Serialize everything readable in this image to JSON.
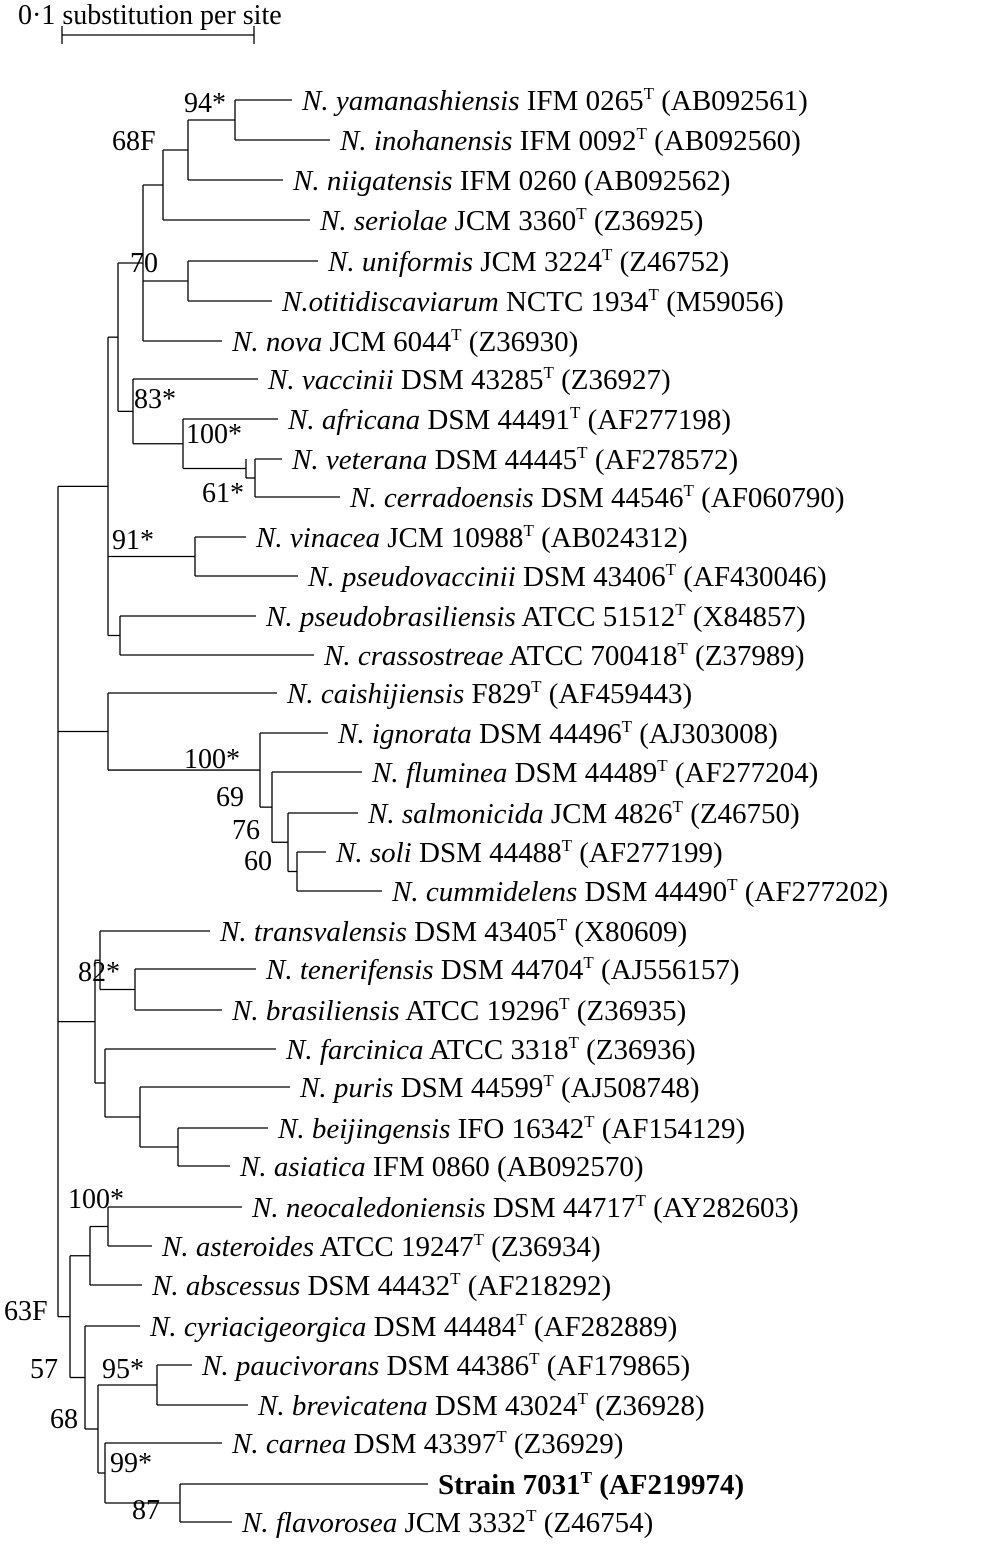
{
  "scale_bar": {
    "label": "0·1 substitution per site"
  },
  "taxa": [
    {
      "id": "yamanashiensis",
      "species": "N. yamanashiensis",
      "strain": " IFM 0265",
      "type_strain": true,
      "accession": " (AB092561)"
    },
    {
      "id": "inohanensis",
      "species": "N. inohanensis",
      "strain": " IFM 0092",
      "type_strain": true,
      "accession": " (AB092560)"
    },
    {
      "id": "niigatensis",
      "species": "N. niigatensis",
      "strain": " IFM 0260 (AB092562)",
      "type_strain": false,
      "accession": ""
    },
    {
      "id": "seriolae",
      "species": "N. seriolae",
      "strain": " JCM 3360",
      "type_strain": true,
      "accession": " (Z36925)"
    },
    {
      "id": "uniformis",
      "species": "N. uniformis",
      "strain": " JCM 3224",
      "type_strain": true,
      "accession": " (Z46752)"
    },
    {
      "id": "otitidiscaviarum",
      "species": "N.otitidiscaviarum",
      "strain": " NCTC 1934",
      "type_strain": true,
      "accession": " (M59056)"
    },
    {
      "id": "nova",
      "species": "N. nova",
      "strain": " JCM 6044",
      "type_strain": true,
      "accession": " (Z36930)"
    },
    {
      "id": "vaccinii",
      "species": "N. vaccinii",
      "strain": " DSM 43285",
      "type_strain": true,
      "accession": " (Z36927)"
    },
    {
      "id": "africana",
      "species": "N. africana",
      "strain": " DSM 44491",
      "type_strain": true,
      "accession": " (AF277198)"
    },
    {
      "id": "veterana",
      "species": "N. veterana",
      "strain": " DSM 44445",
      "type_strain": true,
      "accession": " (AF278572)"
    },
    {
      "id": "cerradoensis",
      "species": "N. cerradoensis",
      "strain": " DSM 44546",
      "type_strain": true,
      "accession": " (AF060790)"
    },
    {
      "id": "vinacea",
      "species": "N. vinacea",
      "strain": " JCM 10988",
      "type_strain": true,
      "accession": " (AB024312)"
    },
    {
      "id": "pseudovaccinii",
      "species": "N. pseudovaccinii",
      "strain": " DSM 43406",
      "type_strain": true,
      "accession": " (AF430046)"
    },
    {
      "id": "pseudobrasiliensis",
      "species": "N. pseudobrasiliensis",
      "strain": " ATCC 51512",
      "type_strain": true,
      "accession": " (X84857)"
    },
    {
      "id": "crassostreae",
      "species": "N. crassostreae",
      "strain": " ATCC 700418",
      "type_strain": true,
      "accession": " (Z37989)"
    },
    {
      "id": "caishijiensis",
      "species": "N. caishijiensis",
      "strain": " F829",
      "type_strain": true,
      "accession": " (AF459443)"
    },
    {
      "id": "ignorata",
      "species": "N. ignorata",
      "strain": " DSM 44496",
      "type_strain": true,
      "accession": " (AJ303008)"
    },
    {
      "id": "fluminea",
      "species": "N. fluminea",
      "strain": " DSM 44489",
      "type_strain": true,
      "accession": " (AF277204)"
    },
    {
      "id": "salmonicida",
      "species": "N. salmonicida",
      "strain": " JCM 4826",
      "type_strain": true,
      "accession": " (Z46750)"
    },
    {
      "id": "soli",
      "species": "N. soli",
      "strain": " DSM 44488",
      "type_strain": true,
      "accession": " (AF277199)"
    },
    {
      "id": "cummidelens",
      "species": "N. cummidelens",
      "strain": " DSM 44490",
      "type_strain": true,
      "accession": " (AF277202)"
    },
    {
      "id": "transvalensis",
      "species": "N. transvalensis",
      "strain": " DSM 43405",
      "type_strain": true,
      "accession": " (X80609)"
    },
    {
      "id": "tenerifensis",
      "species": "N. tenerifensis",
      "strain": " DSM 44704",
      "type_strain": true,
      "accession": " (AJ556157)"
    },
    {
      "id": "brasiliensis",
      "species": "N. brasiliensis",
      "strain": " ATCC 19296",
      "type_strain": true,
      "accession": " (Z36935)"
    },
    {
      "id": "farcinica",
      "species": "N. farcinica",
      "strain": " ATCC 3318",
      "type_strain": true,
      "accession": " (Z36936)"
    },
    {
      "id": "puris",
      "species": "N. puris",
      "strain": " DSM 44599",
      "type_strain": true,
      "accession": " (AJ508748)"
    },
    {
      "id": "beijingensis",
      "species": "N. beijingensis",
      "strain": " IFO 16342",
      "type_strain": true,
      "accession": " (AF154129)"
    },
    {
      "id": "asiatica",
      "species": "N. asiatica",
      "strain": " IFM 0860 (AB092570)",
      "type_strain": false,
      "accession": ""
    },
    {
      "id": "neocaledoniensis",
      "species": "N. neocaledoniensis",
      "strain": "  DSM 44717",
      "type_strain": true,
      "accession": " (AY282603)"
    },
    {
      "id": "asteroides",
      "species": "N. asteroides",
      "strain": " ATCC 19247",
      "type_strain": true,
      "accession": " (Z36934)"
    },
    {
      "id": "abscessus",
      "species": "N. abscessus",
      "strain": " DSM 44432",
      "type_strain": true,
      "accession": " (AF218292)"
    },
    {
      "id": "cyriacigeorgica",
      "species": "N. cyriacigeorgica",
      "strain": " DSM 44484",
      "type_strain": true,
      "accession": " (AF282889)"
    },
    {
      "id": "paucivorans",
      "species": "N. paucivorans",
      "strain": " DSM 44386",
      "type_strain": true,
      "accession": " (AF179865)"
    },
    {
      "id": "brevicatena",
      "species": "N. brevicatena",
      "strain": " DSM 43024",
      "type_strain": true,
      "accession": " (Z36928)"
    },
    {
      "id": "carnea",
      "species": "N. carnea",
      "strain": " DSM 43397",
      "type_strain": true,
      "accession": " (Z36929)"
    },
    {
      "id": "strain7031",
      "species": "",
      "strain": "Strain 7031",
      "type_strain": true,
      "accession": " (AF219974)",
      "bold": true
    },
    {
      "id": "flavorosea",
      "species": "N. flavorosea",
      "strain": " JCM 3332",
      "type_strain": true,
      "accession": " (Z46754)"
    }
  ],
  "superscript_T": "T",
  "support_values": [
    {
      "id": "yamanashiensis-inohanensis",
      "text": "94*"
    },
    {
      "id": "yam-ino-niigatensis",
      "text": "68F"
    },
    {
      "id": "uniformis-otitidiscaviarum",
      "text": "70"
    },
    {
      "id": "vaccinii-group",
      "text": "83*"
    },
    {
      "id": "africana-group",
      "text": "100*"
    },
    {
      "id": "veterana-cerradoensis",
      "text": "61*"
    },
    {
      "id": "vinacea-pseudovaccinii",
      "text": "91*"
    },
    {
      "id": "ignorata-group",
      "text": "100*"
    },
    {
      "id": "fluminea-group",
      "text": "69"
    },
    {
      "id": "salmonicida-group",
      "text": "76"
    },
    {
      "id": "soli-cummidelens",
      "text": "60"
    },
    {
      "id": "tenerifensis-brasiliensis",
      "text": "82*"
    },
    {
      "id": "neocaledoniensis-asteroides",
      "text": "100*"
    },
    {
      "id": "outer-root",
      "text": "63F"
    },
    {
      "id": "cyriacigeorgica-group",
      "text": "57"
    },
    {
      "id": "paucivorans-brevicatena",
      "text": "95*"
    },
    {
      "id": "paucivorans-carnea-group",
      "text": "68"
    },
    {
      "id": "carnea-group",
      "text": "99*"
    },
    {
      "id": "strain7031-flavorosea",
      "text": "87"
    }
  ]
}
